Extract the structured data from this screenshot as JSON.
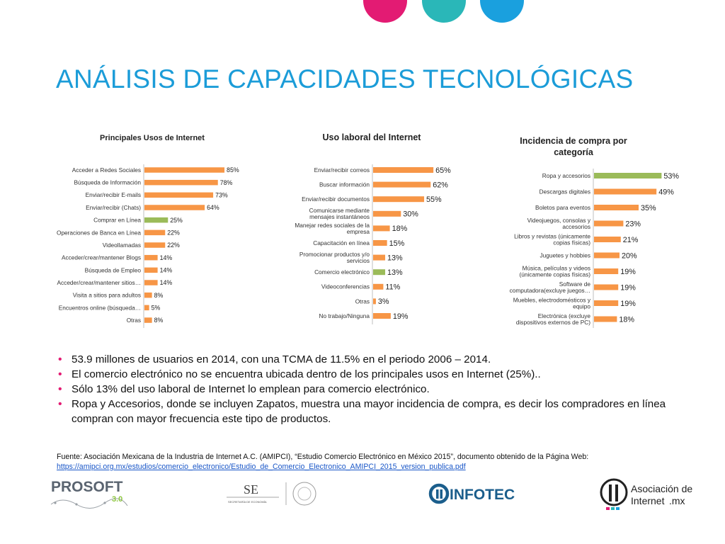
{
  "header": {
    "title": "ANÁLISIS DE CAPACIDADES TECNOLÓGICAS",
    "colors": {
      "title": "#1b9cd8",
      "dot1": "#e31b73",
      "dot2": "#2ab7b8",
      "dot3": "#1aa0de"
    }
  },
  "chart_data": [
    {
      "type": "bar",
      "orientation": "horizontal",
      "title": "Principales  Usos de Internet",
      "categories": [
        "Acceder a Redes Sociales",
        "Búsqueda de Información",
        "Enviar/recibir E-mails",
        "Enviar/recibir (Chats)",
        "Comprar en Línea",
        "Operaciones de Banca en Línea",
        "Videollamadas",
        "Acceder/crear/mantener Blogs",
        "Búsqueda de Empleo",
        "Acceder/crear/mantener sitios…",
        "Visita a sitios para adultos",
        "Encuentros online (búsqueda…",
        "Otras"
      ],
      "values": [
        85,
        78,
        73,
        64,
        25,
        22,
        22,
        14,
        14,
        14,
        8,
        5,
        8
      ],
      "labels": [
        "85%",
        "78%",
        "73%",
        "64%",
        "25%",
        "22%",
        "22%",
        "14%",
        "14%",
        "14%",
        "8%",
        "5%",
        "8%"
      ],
      "highlight_index": 4,
      "xlim": [
        0,
        100
      ],
      "colors": {
        "bar": "#f79646",
        "highlight": "#9bbb59"
      }
    },
    {
      "type": "bar",
      "orientation": "horizontal",
      "title": "Uso laboral del Internet",
      "categories": [
        "Enviar/recibir correos",
        "Buscar información",
        "Enviar/recibir documentos",
        "Comunicarse mediante mensajes instantáneos",
        "Manejar redes sociales de la empresa",
        "Capacitación en línea",
        "Promocionar productos y/o servicios",
        "Comercio electrónico",
        "Videoconferencias",
        "Otras",
        "No trabajo/Ninguna"
      ],
      "values": [
        65,
        62,
        55,
        30,
        18,
        15,
        13,
        13,
        11,
        3,
        19
      ],
      "labels": [
        "65%",
        "62%",
        "55%",
        "30%",
        "18%",
        "15%",
        "13%",
        "13%",
        "11%",
        "3%",
        "19%"
      ],
      "highlight_index": 7,
      "xlim": [
        0,
        100
      ],
      "colors": {
        "bar": "#f79646",
        "highlight": "#9bbb59"
      }
    },
    {
      "type": "bar",
      "orientation": "horizontal",
      "title": "Incidencia de compra por categoría",
      "categories": [
        "Ropa y accesorios",
        "Descargas digitales",
        "Boletos para eventos",
        "Videojuegos, consolas y accesorios",
        "Libros y revistas (únicamente copias físicas)",
        "Juguetes y hobbies",
        "Música, películas y videos (únicamente copias físicas)",
        "Software de computadora(excluye juegos…",
        "Muebles, electrodomésticos y equipo",
        "Electrónica (excluye dispositivos externos de PC)"
      ],
      "values": [
        53,
        49,
        35,
        23,
        21,
        20,
        19,
        19,
        19,
        18
      ],
      "labels": [
        "53%",
        "49%",
        "35%",
        "23%",
        "21%",
        "20%",
        "19%",
        "19%",
        "19%",
        "18%"
      ],
      "highlight_index": 0,
      "xlim": [
        0,
        60
      ],
      "colors": {
        "bar": "#f79646",
        "highlight": "#9bbb59"
      }
    }
  ],
  "bullets": [
    "53.9 millones de usuarios en 2014, con una TCMA de 11.5% en el periodo 2006 – 2014.",
    "El comercio electrónico no se encuentra ubicada dentro de los principales usos en Internet (25%)..",
    "Sólo 13% del uso laboral de Internet lo emplean para comercio electrónico.",
    "Ropa y Accesorios, donde se incluyen Zapatos, muestra una mayor incidencia de compra, es decir los compradores en línea compran con mayor frecuencia este tipo de productos."
  ],
  "source": {
    "text": "Fuente: Asociación Mexicana de la Industria de Internet A.C. (AMIPCI), “Estudio Comercio Electrónico en México 2015”, documento obtenido de la Página Web:",
    "link": "https://amipci.org.mx/estudios/comercio_electronico/Estudio_de_Comercio_Electronico_AMIPCI_2015_version_publica.pdf"
  },
  "footer": {
    "prosoft": {
      "name": "PROSOFT",
      "version": "3.0"
    },
    "se": {
      "abbr": "SE",
      "sub": "SECRETARÍA DE ECONOMÍA"
    },
    "infotec": {
      "name": "INFOTEC"
    },
    "asociacion": {
      "line1": "Asociación de",
      "line2": "Internet",
      "suffix": ".mx"
    }
  }
}
